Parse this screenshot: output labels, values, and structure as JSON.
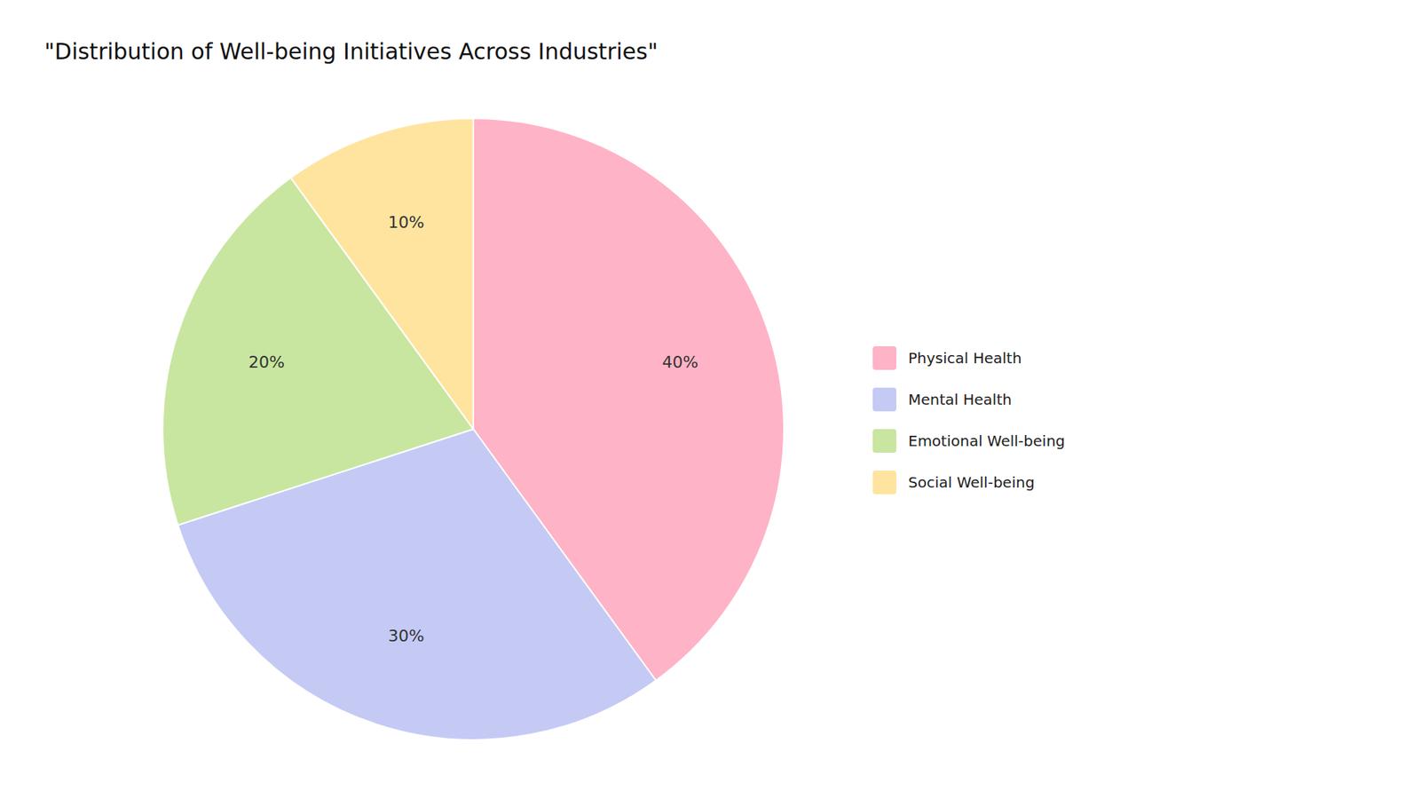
{
  "chart_data": {
    "type": "pie",
    "title": "\"Distribution of Well-being Initiatives Across Industries\"",
    "categories": [
      "Physical Health",
      "Mental Health",
      "Emotional Well-being",
      "Social Well-being"
    ],
    "values": [
      40,
      30,
      20,
      10
    ],
    "value_labels": [
      "40%",
      "30%",
      "20%",
      "10%"
    ],
    "colors": [
      "#FFB3C6",
      "#C5CAF5",
      "#C8E6A0",
      "#FFE4A0"
    ],
    "data_labels": true,
    "legend": "right"
  }
}
